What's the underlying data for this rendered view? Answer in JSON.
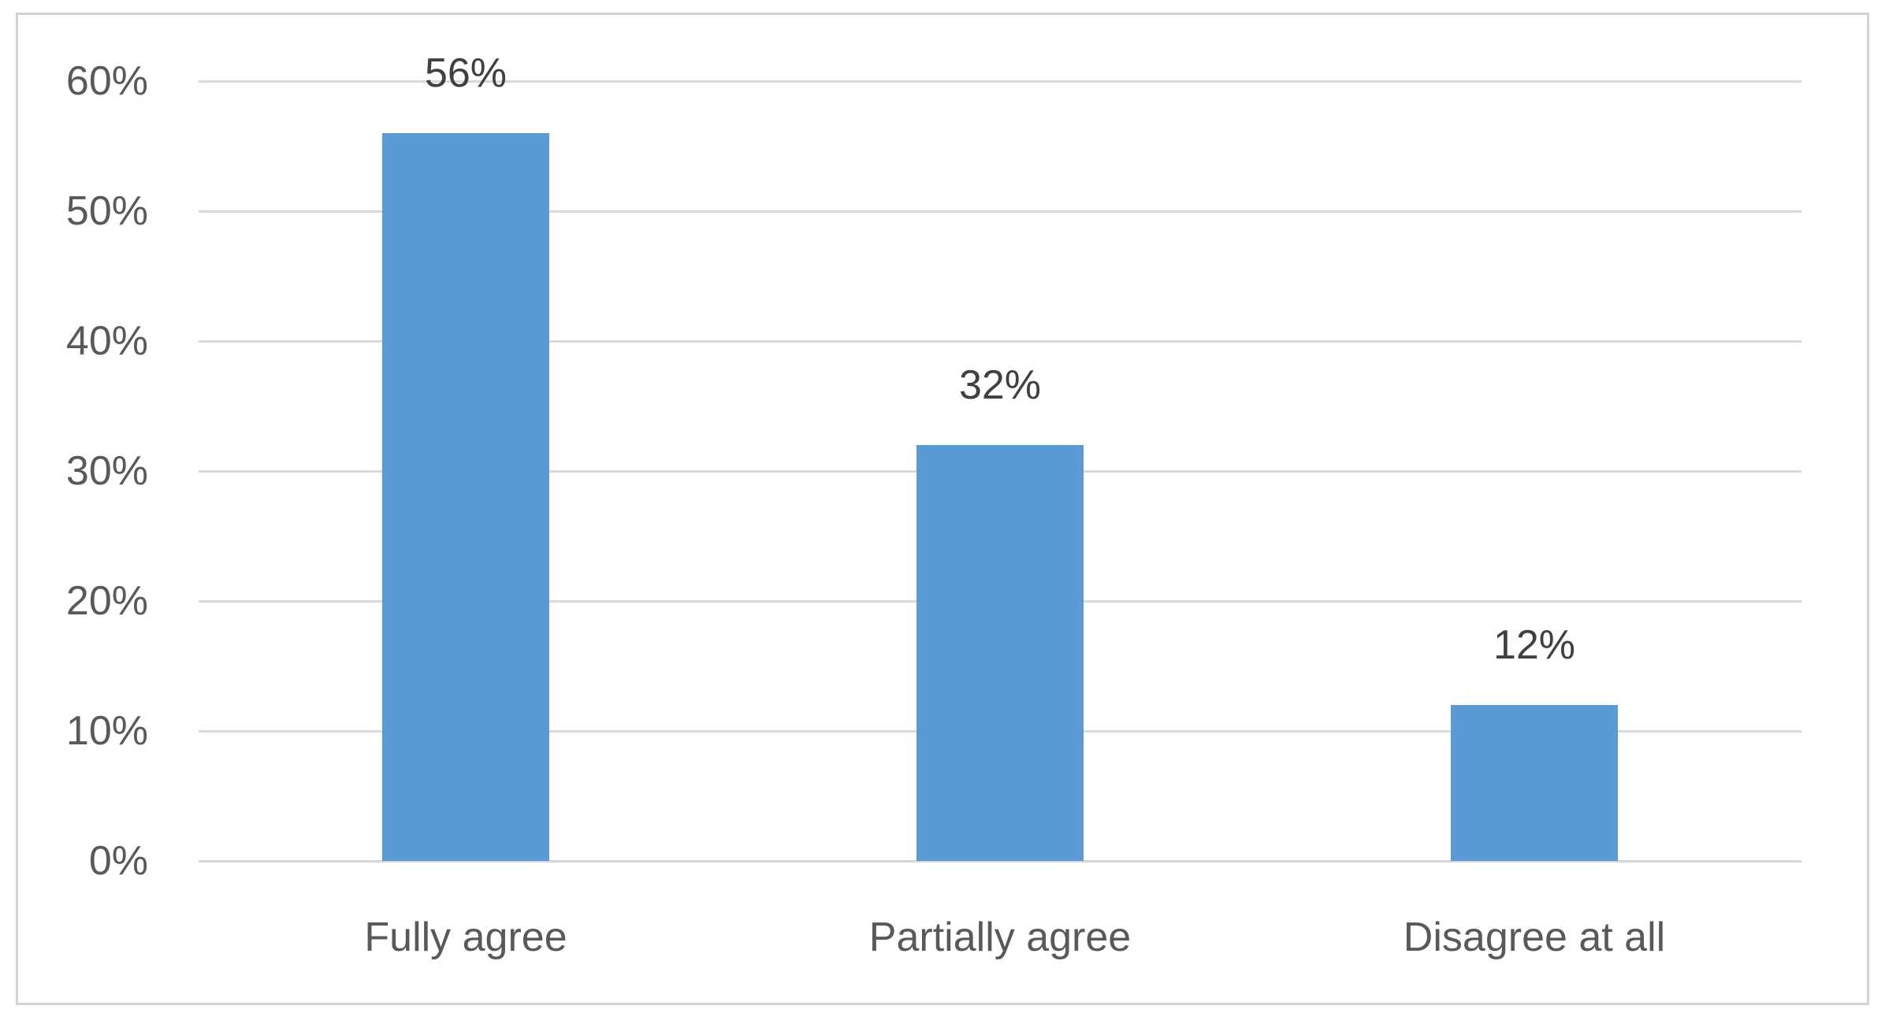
{
  "chart_data": {
    "type": "bar",
    "title": "",
    "xlabel": "",
    "ylabel": "",
    "categories": [
      "Fully agree",
      "Partially agree",
      "Disagree at all"
    ],
    "values": [
      56,
      32,
      12
    ],
    "data_labels": [
      "56%",
      "32%",
      "12%"
    ],
    "y_axis": {
      "min": 0,
      "max": 60,
      "ticks": [
        {
          "label": "60%",
          "value": 60
        },
        {
          "label": "50%",
          "value": 50
        },
        {
          "label": "40%",
          "value": 40
        },
        {
          "label": "30%",
          "value": 30
        },
        {
          "label": "20%",
          "value": 20
        },
        {
          "label": "10%",
          "value": 10
        },
        {
          "label": "0%",
          "value": 0
        }
      ]
    },
    "grid": true,
    "legend": false,
    "colors": {
      "bar_fill": "#5b9bd5",
      "gridline": "#d9d9d9",
      "axis_line": "#d6d6d6",
      "tick_label": "#595959",
      "category_label": "#595959",
      "data_label": "#404040",
      "frame_border": "#d2d2d2",
      "background": "#ffffff"
    }
  }
}
